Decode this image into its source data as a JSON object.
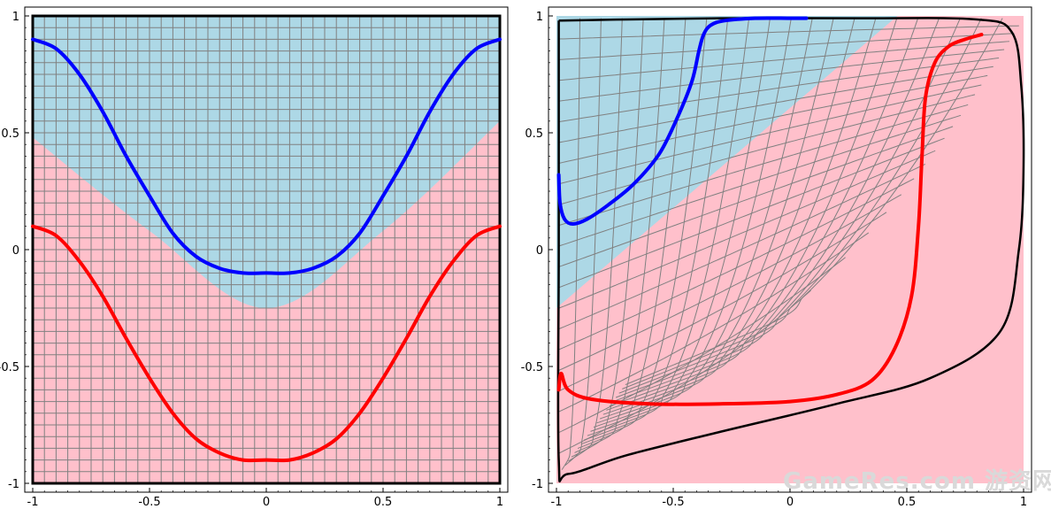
{
  "chart_data": [
    {
      "type": "line",
      "panel": "left",
      "title": "",
      "xlabel": "",
      "ylabel": "",
      "xlim": [
        -1,
        1
      ],
      "ylim": [
        -1,
        1
      ],
      "xticks": [
        "-1",
        "-0.5",
        "0",
        "0.5",
        "1"
      ],
      "yticks": [
        "-1",
        "-0.5",
        "0",
        "0.5",
        "1"
      ],
      "grid": "square mesh, 40 divisions per axis",
      "regions": [
        {
          "color": "#add8e6",
          "boundary_y": {
            "x": [
              -1,
              -0.5,
              0,
              0.5,
              1
            ],
            "y": [
              0.48,
              0.08,
              -0.25,
              0.08,
              0.55
            ]
          },
          "side": "above"
        },
        {
          "color": "#ffc0cb",
          "side": "below"
        }
      ],
      "series": [
        {
          "color": "#0000ff",
          "x": [
            -1,
            -0.9,
            -0.8,
            -0.7,
            -0.6,
            -0.5,
            -0.4,
            -0.3,
            -0.2,
            -0.1,
            0,
            0.1,
            0.2,
            0.3,
            0.4,
            0.5,
            0.6,
            0.7,
            0.8,
            0.9,
            1
          ],
          "y": [
            0.9,
            0.86,
            0.75,
            0.59,
            0.4,
            0.23,
            0.07,
            -0.03,
            -0.08,
            -0.1,
            -0.1,
            -0.1,
            -0.08,
            -0.03,
            0.07,
            0.23,
            0.4,
            0.59,
            0.75,
            0.86,
            0.9
          ]
        },
        {
          "color": "#ff0000",
          "x": [
            -1,
            -0.9,
            -0.8,
            -0.7,
            -0.6,
            -0.5,
            -0.4,
            -0.3,
            -0.2,
            -0.1,
            0,
            0.1,
            0.2,
            0.3,
            0.4,
            0.5,
            0.6,
            0.7,
            0.8,
            0.9,
            1
          ],
          "y": [
            0.1,
            0.06,
            -0.05,
            -0.2,
            -0.38,
            -0.55,
            -0.7,
            -0.81,
            -0.87,
            -0.9,
            -0.9,
            -0.9,
            -0.87,
            -0.81,
            -0.7,
            -0.55,
            -0.38,
            -0.2,
            -0.05,
            0.06,
            0.1
          ]
        }
      ]
    },
    {
      "type": "line",
      "panel": "right",
      "title": "",
      "xlabel": "",
      "ylabel": "",
      "xlim": [
        -1,
        1
      ],
      "ylim": [
        -1,
        1
      ],
      "xticks": [
        "-1",
        "-0.5",
        "0",
        "0.5",
        "1"
      ],
      "yticks": [
        "-1",
        "-0.5",
        "0",
        "0.5",
        "1"
      ],
      "grid": "curvilinear mesh (deformed square grid)",
      "regions": [
        {
          "color": "#add8e6",
          "polygon": {
            "x": [
              -1,
              0.46,
              -1
            ],
            "y": [
              1,
              1,
              -0.25
            ]
          }
        },
        {
          "color": "#ffc0cb",
          "side": "rest"
        }
      ],
      "boundary": {
        "color": "#000000",
        "x": [
          -0.99,
          -0.7,
          -0.3,
          0.3,
          0.8,
          0.95,
          0.99,
          1.0,
          0.98,
          0.9,
          0.6,
          0.2,
          -0.3,
          -0.7,
          -0.95,
          -0.99,
          -0.99,
          -0.99
        ],
        "y": [
          0.98,
          0.985,
          0.99,
          0.99,
          0.985,
          0.93,
          0.7,
          0.36,
          0.0,
          -0.35,
          -0.55,
          -0.66,
          -0.78,
          -0.88,
          -0.96,
          -0.9,
          0.0,
          0.98
        ]
      },
      "series": [
        {
          "color": "#0000ff",
          "x": [
            -0.99,
            -0.985,
            -0.965,
            -0.93,
            -0.87,
            -0.78,
            -0.67,
            -0.56,
            -0.48,
            -0.42,
            -0.39,
            -0.37,
            -0.34,
            -0.28,
            -0.15,
            0.0,
            0.07
          ],
          "y": [
            0.32,
            0.2,
            0.13,
            0.11,
            0.13,
            0.19,
            0.28,
            0.41,
            0.57,
            0.72,
            0.85,
            0.92,
            0.96,
            0.98,
            0.99,
            0.99,
            0.99
          ]
        },
        {
          "color": "#ff0000",
          "x": [
            -0.99,
            -0.98,
            -0.95,
            -0.85,
            -0.6,
            -0.3,
            0.0,
            0.2,
            0.35,
            0.45,
            0.52,
            0.55,
            0.565,
            0.58,
            0.62,
            0.68,
            0.75,
            0.82
          ],
          "y": [
            -0.6,
            -0.53,
            -0.6,
            -0.64,
            -0.66,
            -0.66,
            -0.65,
            -0.62,
            -0.56,
            -0.42,
            -0.2,
            0.1,
            0.4,
            0.65,
            0.8,
            0.87,
            0.9,
            0.92
          ]
        }
      ]
    }
  ],
  "watermark": "GameRes.com 游资网"
}
